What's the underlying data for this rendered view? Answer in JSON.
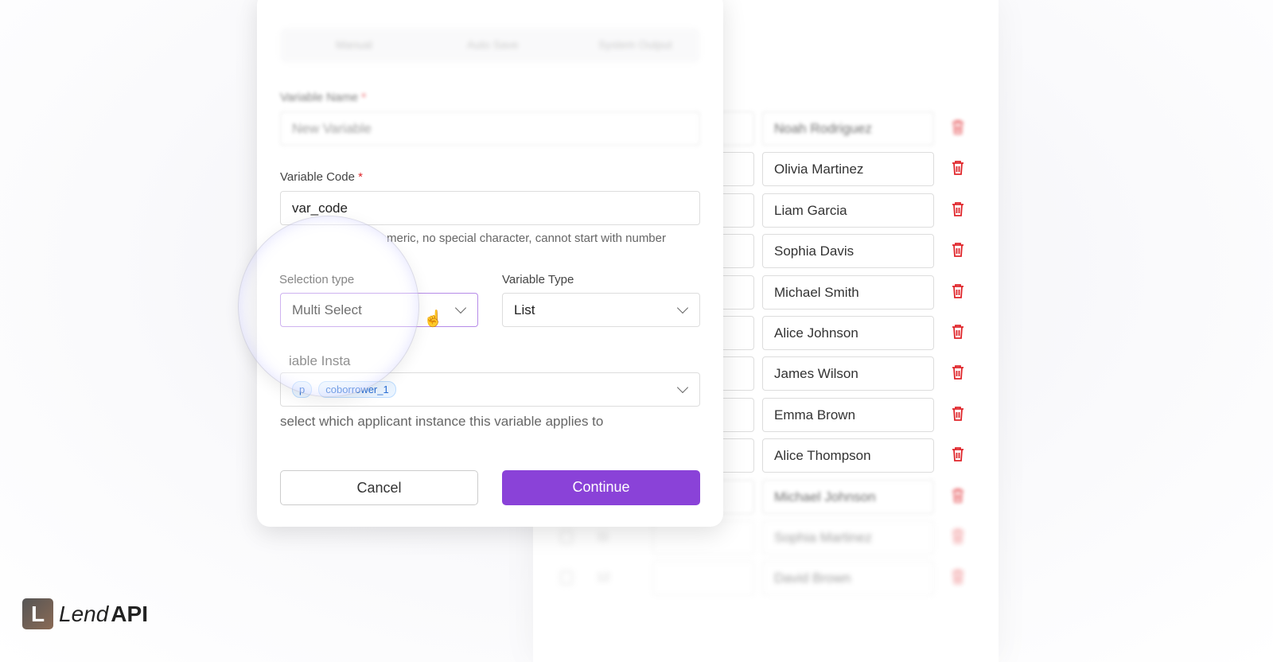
{
  "modal": {
    "tabs": [
      "Manual",
      "Auto Save",
      "System Output"
    ],
    "variable_name": {
      "label": "Variable Name",
      "required": "*",
      "value": "New Variable"
    },
    "variable_code": {
      "label": "Variable Code",
      "required": "*",
      "value": "var_code",
      "help": "meric, no special character, cannot start with number"
    },
    "selection_type": {
      "label": "Selection type",
      "value": "Multi Select"
    },
    "variable_type": {
      "label": "Variable Type",
      "value": "List"
    },
    "instance": {
      "label": "iable Insta",
      "tags": [
        "p",
        "coborrower_1"
      ],
      "help": "select which applicant instance this variable applies to"
    },
    "cancel_label": "Cancel",
    "continue_label": "Continue",
    "accent": "#8a42d8"
  },
  "list": {
    "rows": [
      {
        "name": "Noah Rodriguez"
      },
      {
        "name": "Olivia Martinez"
      },
      {
        "name": "Liam Garcia"
      },
      {
        "name": "Sophia Davis"
      },
      {
        "name": "Michael Smith"
      },
      {
        "name": "Alice Johnson"
      },
      {
        "name": "James Wilson"
      },
      {
        "name": "Emma Brown"
      },
      {
        "name": "Alice Thompson"
      },
      {
        "name": "Michael Johnson"
      },
      {
        "num": "11",
        "name": "Sophia Martinez"
      },
      {
        "num": "12",
        "name": "David Brown"
      }
    ],
    "delete_color": "#e0262b"
  },
  "brand": {
    "lend": "Lend",
    "api": "API"
  }
}
